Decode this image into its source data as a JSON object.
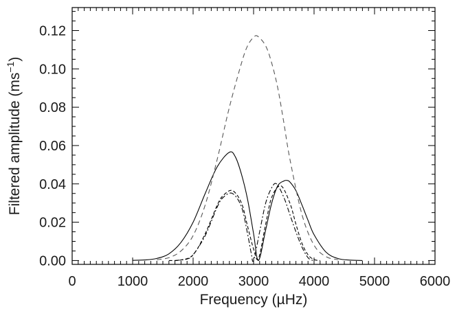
{
  "chart_data": {
    "type": "line",
    "title": "",
    "xlabel": "Frequency (µHz)",
    "ylabel": "Filtered amplitude (ms",
    "ylabel_superscript": "−1",
    "ylabel_close": ")",
    "xlim": [
      0,
      6000
    ],
    "ylim": [
      -0.002,
      0.132
    ],
    "x_ticks": [
      0,
      1000,
      2000,
      3000,
      4000,
      5000,
      6000
    ],
    "x_tick_labels": [
      "0",
      "1000",
      "2000",
      "3000",
      "4000",
      "5000",
      "6000"
    ],
    "y_ticks": [
      0.0,
      0.02,
      0.04,
      0.06,
      0.08,
      0.1,
      0.12
    ],
    "y_tick_labels": [
      "0.00",
      "0.02",
      "0.04",
      "0.06",
      "0.08",
      "0.10",
      "0.12"
    ],
    "grid": false,
    "legend": "none",
    "series": [
      {
        "style": "solid",
        "color": "#000000",
        "x": [
          1000,
          1200,
          1400,
          1600,
          1800,
          2000,
          2200,
          2400,
          2600,
          2700,
          2800,
          2900,
          3000,
          3080,
          3200,
          3300,
          3400,
          3500,
          3550,
          3600,
          3700,
          3800,
          3900,
          4000,
          4200,
          4400,
          4600,
          4800
        ],
        "y": [
          0.0001,
          0.0003,
          0.0011,
          0.0035,
          0.0095,
          0.02,
          0.035,
          0.049,
          0.0565,
          0.054,
          0.045,
          0.032,
          0.014,
          0.0,
          0.016,
          0.03,
          0.039,
          0.0415,
          0.0418,
          0.041,
          0.0365,
          0.029,
          0.021,
          0.0135,
          0.0043,
          0.001,
          0.0002,
          0.0
        ]
      },
      {
        "style": "dashed",
        "color": "#000000",
        "x": [
          1600,
          1800,
          2000,
          2200,
          2400,
          2500,
          2650,
          2800,
          2900,
          3000,
          3080,
          3200,
          3300,
          3450,
          3600,
          3700,
          3800,
          3900,
          4000,
          4100
        ],
        "y": [
          0.0,
          0.0003,
          0.003,
          0.014,
          0.029,
          0.034,
          0.0365,
          0.03,
          0.018,
          0.006,
          0.001,
          0.019,
          0.033,
          0.039,
          0.03,
          0.019,
          0.009,
          0.003,
          0.0005,
          0.0
        ]
      },
      {
        "style": "dash-dot",
        "color": "#000000",
        "x": [
          1700,
          1900,
          2000,
          2200,
          2400,
          2500,
          2650,
          2800,
          2900,
          2960,
          3000,
          3100,
          3200,
          3300,
          3380,
          3500,
          3600,
          3700,
          3800,
          3900,
          3980
        ],
        "y": [
          0.0,
          0.0008,
          0.003,
          0.013,
          0.028,
          0.033,
          0.035,
          0.028,
          0.014,
          0.004,
          0.0,
          0.015,
          0.03,
          0.038,
          0.04,
          0.033,
          0.024,
          0.015,
          0.007,
          0.0015,
          0.0
        ]
      },
      {
        "style": "long-dash",
        "color": "#555555",
        "x": [
          1400,
          1600,
          1800,
          2000,
          2200,
          2400,
          2600,
          2800,
          2900,
          3000,
          3070,
          3200,
          3300,
          3400,
          3500,
          3600,
          3800,
          4000,
          4200,
          4400
        ],
        "y": [
          0.0004,
          0.0015,
          0.005,
          0.013,
          0.029,
          0.053,
          0.08,
          0.103,
          0.112,
          0.1165,
          0.117,
          0.112,
          0.103,
          0.09,
          0.072,
          0.053,
          0.024,
          0.008,
          0.002,
          0.0004
        ]
      }
    ]
  }
}
